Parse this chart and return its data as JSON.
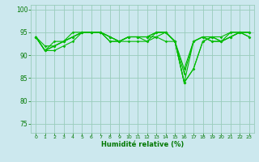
{
  "xlabel": "Humidité relative (%)",
  "bg_color": "#cce8ee",
  "grid_color": "#99ccbb",
  "line_color": "#00bb00",
  "tick_color": "#007700",
  "ylim": [
    73,
    101
  ],
  "xlim": [
    -0.5,
    23.5
  ],
  "yticks": [
    75,
    80,
    85,
    90,
    95,
    100
  ],
  "xtick_labels": [
    "0",
    "1",
    "2",
    "3",
    "4",
    "5",
    "6",
    "7",
    "8",
    "9",
    "10",
    "11",
    "12",
    "13",
    "14",
    "15",
    "16",
    "17",
    "18",
    "19",
    "20",
    "21",
    "22",
    "23"
  ],
  "series": [
    [
      94,
      91,
      91,
      92,
      93,
      95,
      95,
      95,
      94,
      93,
      93,
      93,
      93,
      94,
      93,
      93,
      87,
      93,
      94,
      93,
      93,
      94,
      95,
      95
    ],
    [
      94,
      91,
      92,
      93,
      94,
      95,
      95,
      95,
      94,
      93,
      94,
      94,
      94,
      95,
      95,
      93,
      86,
      93,
      94,
      93,
      93,
      95,
      95,
      95
    ],
    [
      94,
      91,
      93,
      93,
      95,
      95,
      95,
      95,
      94,
      93,
      94,
      94,
      94,
      95,
      95,
      93,
      84,
      93,
      94,
      94,
      94,
      95,
      95,
      95
    ],
    [
      94,
      92,
      92,
      93,
      94,
      95,
      95,
      95,
      93,
      93,
      94,
      94,
      93,
      95,
      95,
      93,
      84,
      87,
      93,
      94,
      93,
      94,
      95,
      94
    ],
    [
      94,
      91,
      92,
      93,
      94,
      95,
      95,
      95,
      93,
      93,
      94,
      94,
      94,
      94,
      95,
      93,
      84,
      87,
      93,
      94,
      93,
      94,
      95,
      94
    ]
  ]
}
